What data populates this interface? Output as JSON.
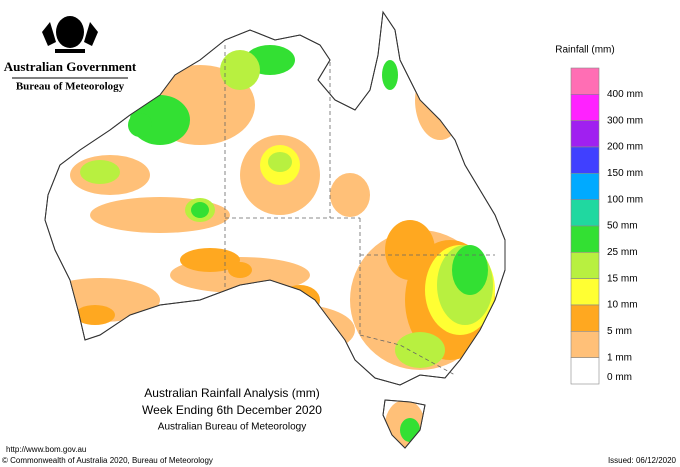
{
  "header": {
    "government": "Australian Government",
    "agency": "Bureau of Meteorology"
  },
  "legend": {
    "title": "Rainfall (mm)",
    "items": [
      {
        "label": null,
        "color": "#ff6eb4"
      },
      {
        "label": "400 mm",
        "color": "#ff22ff"
      },
      {
        "label": "300 mm",
        "color": "#a020f0"
      },
      {
        "label": "200 mm",
        "color": "#4040ff"
      },
      {
        "label": "150 mm",
        "color": "#00aaff"
      },
      {
        "label": "100 mm",
        "color": "#20d8a0"
      },
      {
        "label": "50 mm",
        "color": "#33e033"
      },
      {
        "label": "25 mm",
        "color": "#b8f040"
      },
      {
        "label": "15 mm",
        "color": "#ffff33"
      },
      {
        "label": "10 mm",
        "color": "#ffa820"
      },
      {
        "label": "5 mm",
        "color": "#ffc078"
      },
      {
        "label": "1 mm",
        "color": "#ffffff"
      },
      {
        "label": "0 mm",
        "color": null
      }
    ]
  },
  "map": {
    "title": [
      "Australian Rainfall Analysis (mm)",
      "Week Ending 6th December 2020",
      "Australian Bureau of Meteorology"
    ]
  },
  "footer": {
    "url": "http://www.bom.gov.au",
    "copyright": "© Commonwealth of Australia 2020, Bureau of Meteorology",
    "issued": "Issued: 06/12/2020"
  }
}
